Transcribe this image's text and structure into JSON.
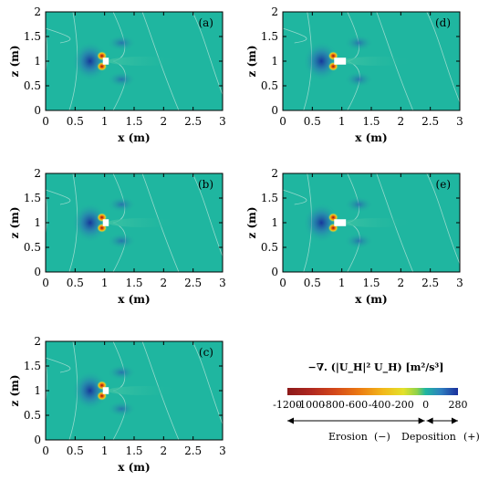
{
  "chart_data": {
    "type": "heatmap",
    "panels": [
      {
        "label": "(a)",
        "obstacle": {
          "x0": 0.97,
          "x1": 1.07,
          "z0": 0.93,
          "z1": 1.07
        }
      },
      {
        "label": "(b)",
        "obstacle": {
          "x0": 0.97,
          "x1": 1.07,
          "z0": 0.93,
          "z1": 1.07
        }
      },
      {
        "label": "(c)",
        "obstacle": {
          "x0": 0.97,
          "x1": 1.07,
          "z0": 0.93,
          "z1": 1.07
        }
      },
      {
        "label": "(d)",
        "obstacle": {
          "x0": 0.87,
          "x1": 1.07,
          "z0": 0.93,
          "z1": 1.07
        }
      },
      {
        "label": "(e)",
        "obstacle": {
          "x0": 0.87,
          "x1": 1.07,
          "z0": 0.93,
          "z1": 1.07
        }
      }
    ],
    "xlabel": "x (m)",
    "ylabel": "z (m)",
    "xlim": [
      0,
      3
    ],
    "ylim": [
      0,
      2
    ],
    "xticks": [
      "0",
      "0.5",
      "1",
      "1.5",
      "2",
      "2.5",
      "3"
    ],
    "yticks": [
      "0",
      "0.5",
      "1",
      "1.5",
      "2"
    ],
    "colorbar": {
      "title": "−∇. (|U_H|² U_H) [m²/s³]",
      "range": [
        -1200,
        280
      ],
      "tick_labels": [
        "-1200",
        "-1000",
        "-800",
        "-600",
        "-400",
        "-200",
        "0",
        "280"
      ],
      "tick_values": [
        -1200,
        -1000,
        -800,
        -600,
        -400,
        -200,
        0,
        280
      ],
      "erosion_label": "Erosion",
      "erosion_sign": "(−)",
      "deposition_label": "Deposition",
      "deposition_sign": "(+)"
    },
    "colors": {
      "background_field": "#1fb6a0",
      "deposition": "#1530a8",
      "erosion": "#a01818",
      "contour_line": "#a9dfd3"
    }
  }
}
